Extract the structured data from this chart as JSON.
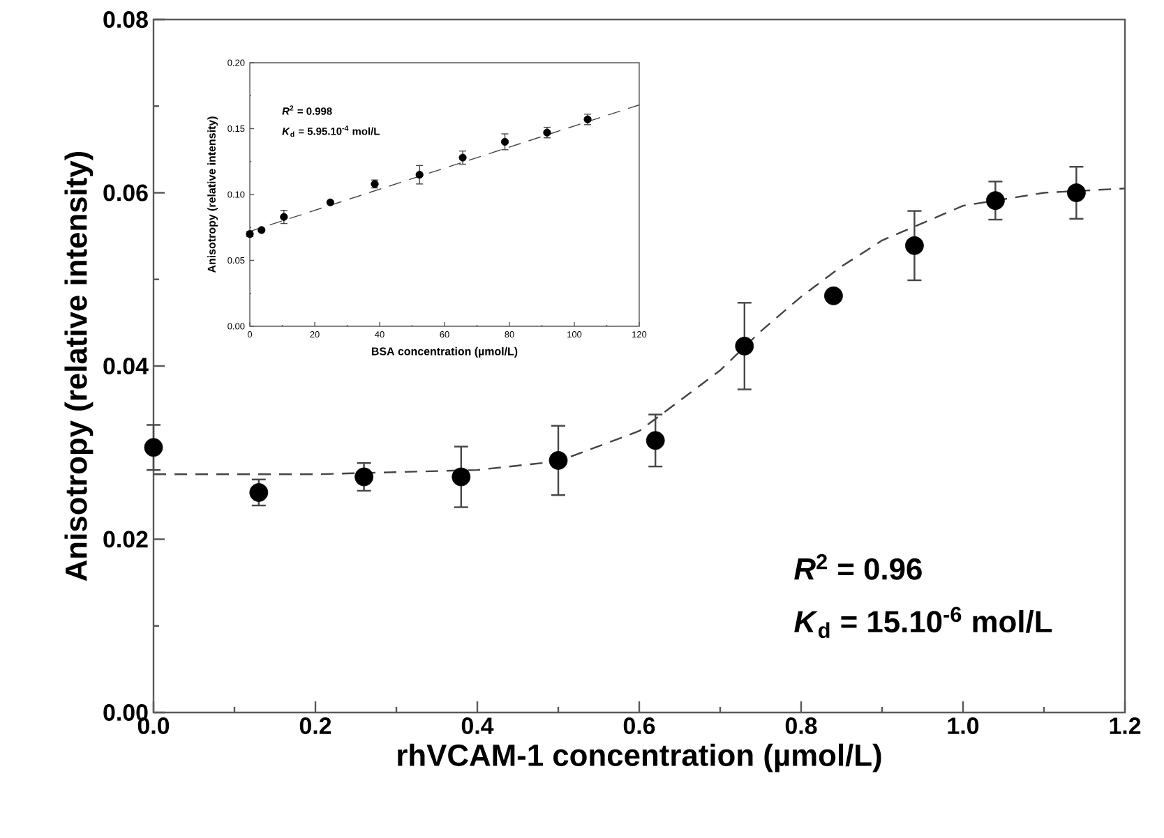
{
  "chart_data": [
    {
      "type": "scatter",
      "xlabel": "rhVCAM-1 concentration (µmol/L)",
      "ylabel": "Anisotropy (relative intensity)",
      "xlim": [
        0,
        1.2
      ],
      "ylim": [
        0,
        0.08
      ],
      "xticks": [
        {
          "value": 0,
          "label": "0.0"
        },
        {
          "value": 0.2,
          "label": "0.2"
        },
        {
          "value": 0.4,
          "label": "0.4"
        },
        {
          "value": 0.6,
          "label": "0.6"
        },
        {
          "value": 0.8,
          "label": "0.8"
        },
        {
          "value": 1.0,
          "label": "1.0"
        },
        {
          "value": 1.2,
          "label": "1.2"
        }
      ],
      "yticks": [
        {
          "value": 0,
          "label": "0.00"
        },
        {
          "value": 0.02,
          "label": "0.02"
        },
        {
          "value": 0.04,
          "label": "0.04"
        },
        {
          "value": 0.06,
          "label": "0.06"
        },
        {
          "value": 0.08,
          "label": "0.08"
        }
      ],
      "series": [
        {
          "marker": "circle",
          "color": "#000000",
          "x": [
            0,
            0.13,
            0.26,
            0.38,
            0.5,
            0.62,
            0.73,
            0.84,
            0.94,
            1.04,
            1.14
          ],
          "values": [
            0.0306,
            0.0254,
            0.0272,
            0.0272,
            0.0291,
            0.0314,
            0.0423,
            0.0481,
            0.0539,
            0.0591,
            0.06
          ],
          "errors": [
            0.0026,
            0.0015,
            0.0016,
            0.0035,
            0.004,
            0.003,
            0.005,
            null,
            0.004,
            0.0022,
            0.003
          ]
        },
        {
          "type": "line",
          "marker": "none",
          "line_style": "dashed",
          "color": "#444444",
          "x": [
            0,
            0.2,
            0.4,
            0.5,
            0.6,
            0.65,
            0.7,
            0.75,
            0.8,
            0.85,
            0.9,
            1.0,
            1.1,
            1.2
          ],
          "values": [
            0.0275,
            0.0275,
            0.028,
            0.029,
            0.0325,
            0.036,
            0.0395,
            0.044,
            0.048,
            0.0515,
            0.0545,
            0.0585,
            0.06,
            0.0605
          ]
        }
      ],
      "annotations": [
        "*R*$^{2}$ = 0.96",
        "*K*$_{d}$ = 15.10$^{-6}$ mol/L"
      ]
    },
    {
      "type": "scatter",
      "xlabel": "BSA concentration (µmol/L)",
      "ylabel": "Anisotropy (relative intensity)",
      "xlim": [
        0,
        120
      ],
      "ylim": [
        0,
        0.2
      ],
      "xticks": [
        0,
        20,
        40,
        60,
        80,
        100,
        120
      ],
      "yticks": [
        {
          "value": 0,
          "label": "0.00"
        },
        {
          "value": 0.05,
          "label": "0.05"
        },
        {
          "value": 0.1,
          "label": "0.10"
        },
        {
          "value": 0.15,
          "label": "0.15"
        },
        {
          "value": 0.2,
          "label": "0.20"
        }
      ],
      "series": [
        {
          "marker": "circle",
          "color": "#000000",
          "x": [
            0,
            3.6,
            10.5,
            24.8,
            38.5,
            52.3,
            65.6,
            78.6,
            91.6,
            104.1
          ],
          "values": [
            0.07,
            0.073,
            0.083,
            0.094,
            0.108,
            0.115,
            0.128,
            0.14,
            0.147,
            0.157
          ],
          "errors": [
            0.002,
            null,
            0.005,
            null,
            0.003,
            0.007,
            0.005,
            0.006,
            0.004,
            0.004
          ]
        },
        {
          "type": "line",
          "marker": "none",
          "line_style": "dashed",
          "color": "#444444",
          "x": [
            0,
            120
          ],
          "values": [
            0.072,
            0.168
          ]
        }
      ],
      "annotations": [
        "*R*$^{2}$ = 0.998",
        "*K*$_{d}$ = 5.95.10$^{-4}$ mol/L"
      ]
    }
  ]
}
